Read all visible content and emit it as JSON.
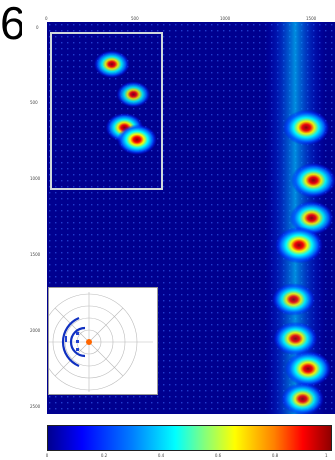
{
  "figure": {
    "panel_letter": "6",
    "colorbar_ticks": [
      "0",
      "0.2",
      "0.4",
      "0.6",
      "0.8",
      "1"
    ],
    "colors": [
      "#00008f",
      "#0000ff",
      "#0080ff",
      "#00ffff",
      "#80ff80",
      "#ffff00",
      "#ff8000",
      "#ff0000",
      "#8f0000"
    ]
  },
  "chart_data": {
    "type": "heatmap",
    "title": "",
    "xlabel": "",
    "ylabel": "",
    "x_ticks": [
      "0",
      "500",
      "1000",
      "1500"
    ],
    "y_ticks": [
      "0",
      "500",
      "1000",
      "1500",
      "2000",
      "2500"
    ],
    "xlim": [
      0,
      1600
    ],
    "ylim": [
      0,
      2600
    ],
    "value_range": [
      0,
      1
    ],
    "grid": false,
    "legend": "colorbar-bottom",
    "hotspots": [
      {
        "x": 1440,
        "y": 700,
        "value": 0.85
      },
      {
        "x": 1480,
        "y": 1050,
        "value": 0.8
      },
      {
        "x": 1470,
        "y": 1300,
        "value": 0.75
      },
      {
        "x": 1400,
        "y": 1480,
        "value": 0.9
      },
      {
        "x": 1370,
        "y": 1840,
        "value": 0.7
      },
      {
        "x": 1380,
        "y": 2100,
        "value": 0.75
      },
      {
        "x": 1450,
        "y": 2300,
        "value": 0.85
      },
      {
        "x": 1420,
        "y": 2500,
        "value": 0.7
      }
    ],
    "inset_hotspots": [
      {
        "x": 360,
        "y": 280,
        "value": 0.75
      },
      {
        "x": 480,
        "y": 480,
        "value": 0.65
      },
      {
        "x": 430,
        "y": 700,
        "value": 0.85
      },
      {
        "x": 500,
        "y": 780,
        "value": 0.95
      }
    ]
  }
}
